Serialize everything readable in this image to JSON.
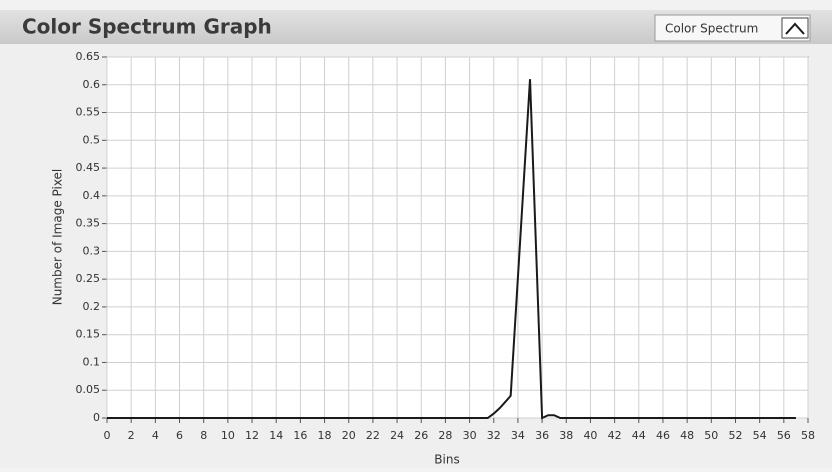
{
  "chart_data": {
    "type": "line",
    "title": "Color Spectrum Graph",
    "x_label": "Bins",
    "y_label": "Number of Image Pixel",
    "legend": "top-right",
    "grid": true,
    "series": [
      {
        "name": "Color Spectrum",
        "color": "#1a1a1a",
        "x": [
          0,
          31,
          31.5,
          32,
          32.5,
          33,
          33.4,
          35,
          36,
          36.5,
          37,
          37.5,
          57
        ],
        "values": [
          0,
          0,
          0,
          0.008,
          0.018,
          0.03,
          0.04,
          0.61,
          0,
          0.005,
          0.005,
          0,
          0
        ]
      }
    ],
    "xlim": [
      0,
      58
    ],
    "xticks": [
      0,
      2,
      4,
      6,
      8,
      10,
      12,
      14,
      16,
      18,
      20,
      22,
      24,
      26,
      28,
      30,
      32,
      34,
      36,
      38,
      40,
      42,
      44,
      46,
      48,
      50,
      52,
      54,
      56,
      58
    ],
    "ylim": [
      0,
      0.65
    ],
    "yticks": [
      0,
      0.05,
      0.1,
      0.15,
      0.2,
      0.25,
      0.3,
      0.35,
      0.4,
      0.45,
      0.5,
      0.55,
      0.6,
      0.65
    ]
  }
}
